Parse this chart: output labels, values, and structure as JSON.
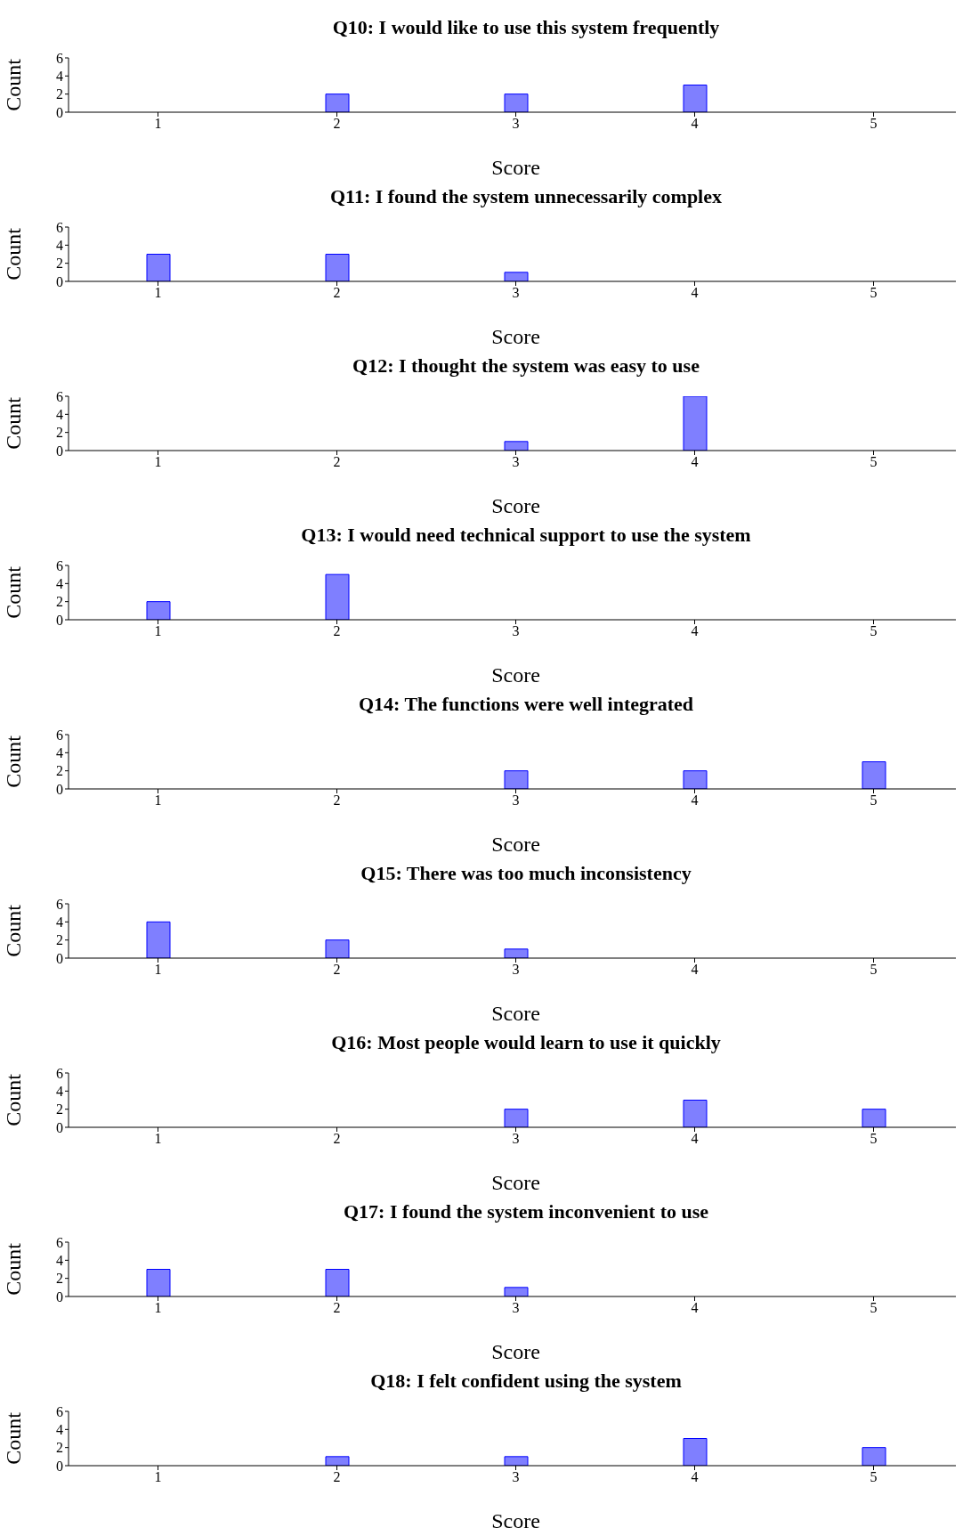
{
  "chart_data": [
    {
      "type": "bar",
      "title": "Q10: I would like to use this system frequently",
      "xlabel": "Score",
      "ylabel": "Count",
      "x": [
        1,
        2,
        3,
        4,
        5
      ],
      "values": [
        0,
        2,
        2,
        3,
        0
      ],
      "color": "#7f7fff",
      "xlim": [
        0.5,
        5.5
      ],
      "xticks": [
        1,
        2,
        3,
        4,
        5
      ],
      "ylim": [
        0,
        6
      ],
      "yticks": [
        0,
        2,
        4,
        6
      ]
    },
    {
      "type": "bar",
      "title": "Q11: I found the system unnecessarily complex",
      "xlabel": "Score",
      "ylabel": "Count",
      "x": [
        1,
        2,
        3,
        4,
        5
      ],
      "values": [
        3,
        3,
        1,
        0,
        0
      ],
      "color": "#7f7fff",
      "xlim": [
        0.5,
        5.5
      ],
      "xticks": [
        1,
        2,
        3,
        4,
        5
      ],
      "ylim": [
        0,
        6
      ],
      "yticks": [
        0,
        2,
        4,
        6
      ]
    },
    {
      "type": "bar",
      "title": "Q12: I thought the system was easy to use",
      "xlabel": "Score",
      "ylabel": "Count",
      "x": [
        1,
        2,
        3,
        4,
        5
      ],
      "values": [
        0,
        0,
        1,
        6,
        0
      ],
      "color": "#7f7fff",
      "xlim": [
        0.5,
        5.5
      ],
      "xticks": [
        1,
        2,
        3,
        4,
        5
      ],
      "ylim": [
        0,
        6
      ],
      "yticks": [
        0,
        2,
        4,
        6
      ]
    },
    {
      "type": "bar",
      "title": "Q13: I would need technical support to use the system",
      "xlabel": "Score",
      "ylabel": "Count",
      "x": [
        1,
        2,
        3,
        4,
        5
      ],
      "values": [
        2,
        5,
        0,
        0,
        0
      ],
      "color": "#7f7fff",
      "xlim": [
        0.5,
        5.5
      ],
      "xticks": [
        1,
        2,
        3,
        4,
        5
      ],
      "ylim": [
        0,
        6
      ],
      "yticks": [
        0,
        2,
        4,
        6
      ]
    },
    {
      "type": "bar",
      "title": "Q14: The functions were well integrated",
      "xlabel": "Score",
      "ylabel": "Count",
      "x": [
        1,
        2,
        3,
        4,
        5
      ],
      "values": [
        0,
        0,
        2,
        2,
        3
      ],
      "color": "#7f7fff",
      "xlim": [
        0.5,
        5.5
      ],
      "xticks": [
        1,
        2,
        3,
        4,
        5
      ],
      "ylim": [
        0,
        6
      ],
      "yticks": [
        0,
        2,
        4,
        6
      ]
    },
    {
      "type": "bar",
      "title": "Q15: There was too much inconsistency",
      "xlabel": "Score",
      "ylabel": "Count",
      "x": [
        1,
        2,
        3,
        4,
        5
      ],
      "values": [
        4,
        2,
        1,
        0,
        0
      ],
      "color": "#7f7fff",
      "xlim": [
        0.5,
        5.5
      ],
      "xticks": [
        1,
        2,
        3,
        4,
        5
      ],
      "ylim": [
        0,
        6
      ],
      "yticks": [
        0,
        2,
        4,
        6
      ]
    },
    {
      "type": "bar",
      "title": "Q16: Most people would learn to use it quickly",
      "xlabel": "Score",
      "ylabel": "Count",
      "x": [
        1,
        2,
        3,
        4,
        5
      ],
      "values": [
        0,
        0,
        2,
        3,
        2
      ],
      "color": "#7f7fff",
      "xlim": [
        0.5,
        5.5
      ],
      "xticks": [
        1,
        2,
        3,
        4,
        5
      ],
      "ylim": [
        0,
        6
      ],
      "yticks": [
        0,
        2,
        4,
        6
      ]
    },
    {
      "type": "bar",
      "title": "Q17: I found the system inconvenient to use",
      "xlabel": "Score",
      "ylabel": "Count",
      "x": [
        1,
        2,
        3,
        4,
        5
      ],
      "values": [
        3,
        3,
        1,
        0,
        0
      ],
      "color": "#7f7fff",
      "xlim": [
        0.5,
        5.5
      ],
      "xticks": [
        1,
        2,
        3,
        4,
        5
      ],
      "ylim": [
        0,
        6
      ],
      "yticks": [
        0,
        2,
        4,
        6
      ]
    },
    {
      "type": "bar",
      "title": "Q18: I felt confident using the system",
      "xlabel": "Score",
      "ylabel": "Count",
      "x": [
        1,
        2,
        3,
        4,
        5
      ],
      "values": [
        0,
        1,
        1,
        3,
        2
      ],
      "color": "#7f7fff",
      "xlim": [
        0.5,
        5.5
      ],
      "xticks": [
        1,
        2,
        3,
        4,
        5
      ],
      "ylim": [
        0,
        6
      ],
      "yticks": [
        0,
        2,
        4,
        6
      ]
    }
  ]
}
